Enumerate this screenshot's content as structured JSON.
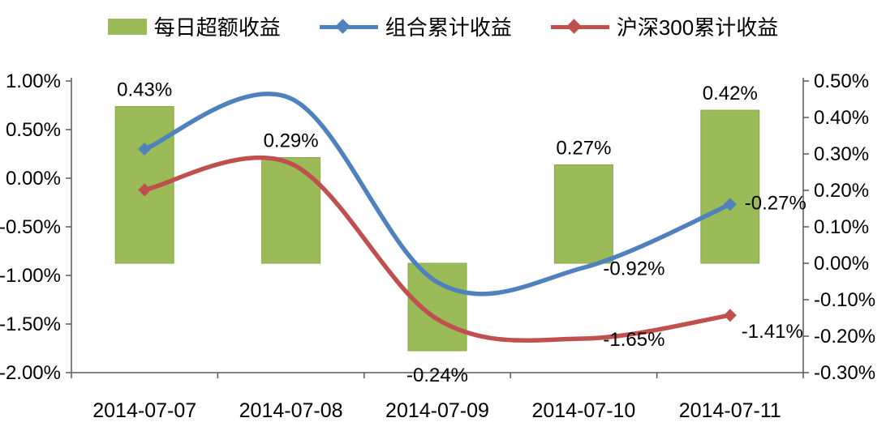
{
  "colors": {
    "bar": "#9bbb59",
    "bar_border": "#8aa84e",
    "line1": "#4f81bd",
    "line2": "#c0504d",
    "axis": "#595959",
    "text": "#000000"
  },
  "legend": {
    "bar_label": "每日超额收益",
    "line1_label": "组合累计收益",
    "line2_label": "沪深300累计收益"
  },
  "chart_data": {
    "type": "bar",
    "combo": "bar + 2 smooth lines, dual y-axes",
    "title": "",
    "xlabel": "",
    "ylabel": "",
    "grid": false,
    "legend_position": "top",
    "categories": [
      "2014-07-07",
      "2014-07-08",
      "2014-07-09",
      "2014-07-10",
      "2014-07-11"
    ],
    "series": [
      {
        "name": "每日超额收益",
        "type": "bar",
        "axis": "right",
        "values": [
          0.43,
          0.29,
          -0.24,
          0.27,
          0.42
        ],
        "labels": [
          "0.43%",
          "0.29%",
          "-0.24%",
          "0.27%",
          "0.42%"
        ]
      },
      {
        "name": "组合累计收益",
        "type": "line",
        "axis": "left",
        "values": [
          0.3,
          0.82,
          -1.07,
          -0.92,
          -0.27
        ],
        "point_labels": {
          "3": "-0.92%",
          "4": "-0.27%"
        }
      },
      {
        "name": "沪深300累计收益",
        "type": "line",
        "axis": "left",
        "values": [
          -0.12,
          0.15,
          -1.45,
          -1.65,
          -1.41
        ],
        "point_labels": {
          "3": "-1.65%",
          "4": "-1.41%"
        }
      }
    ],
    "left_axis": {
      "min": -2.0,
      "max": 1.0,
      "step": 0.5,
      "tick_labels": [
        "1.00%",
        "0.50%",
        "0.00%",
        "-0.50%",
        "-1.00%",
        "-1.50%",
        "-2.00%"
      ]
    },
    "right_axis": {
      "min": -0.3,
      "max": 0.5,
      "step": 0.1,
      "tick_labels": [
        "0.50%",
        "0.40%",
        "0.30%",
        "0.20%",
        "0.10%",
        "0.00%",
        "-0.10%",
        "-0.20%",
        "-0.30%"
      ]
    }
  }
}
